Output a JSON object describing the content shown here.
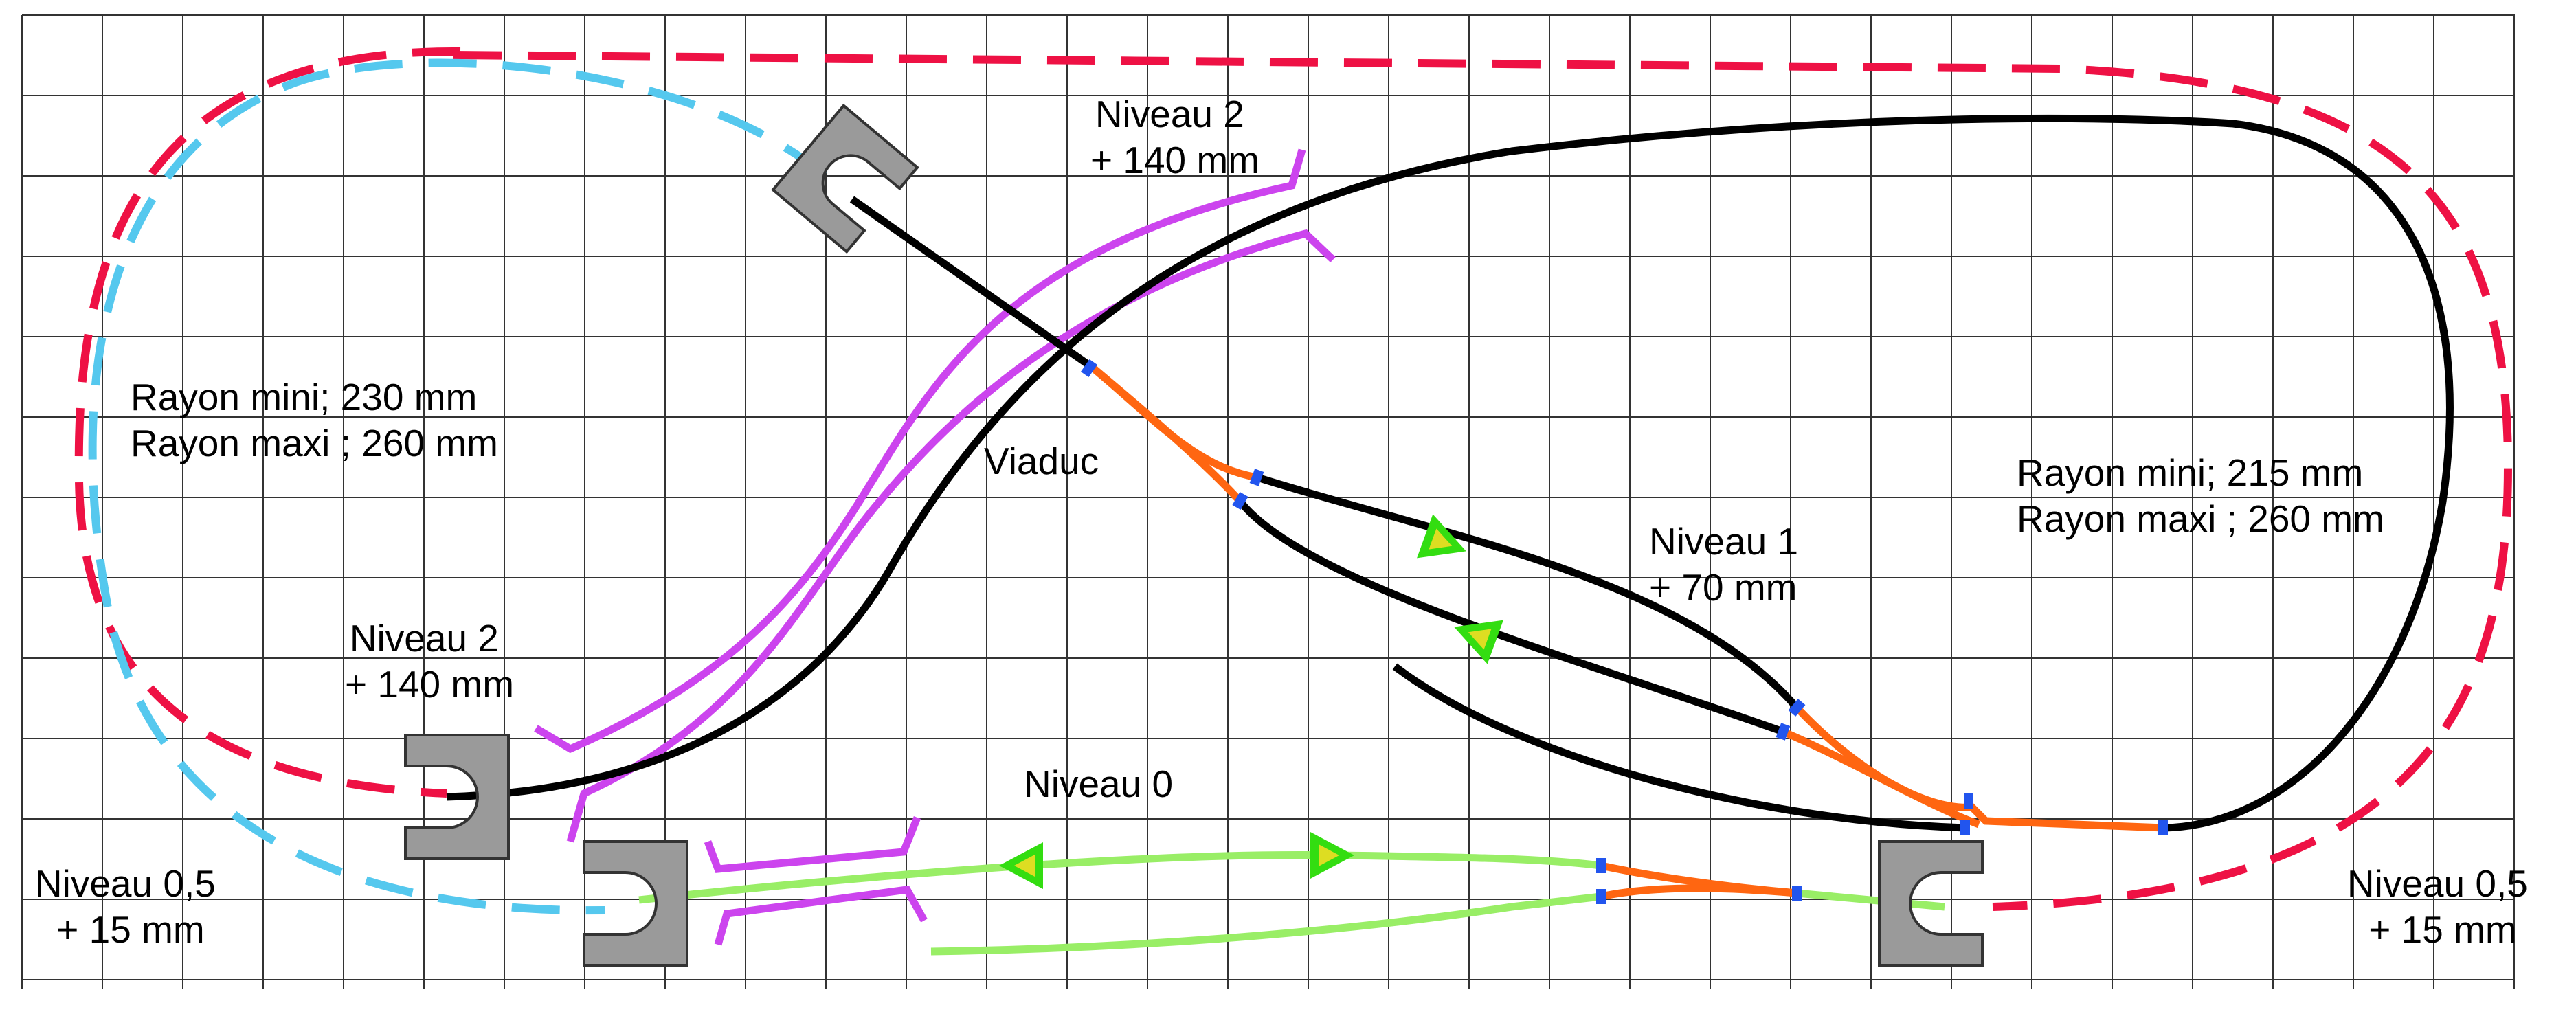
{
  "labels": {
    "niveau2_top": [
      "Niveau 2",
      "+ 140 mm"
    ],
    "niveau2_left": [
      "Niveau 2",
      "+ 140 mm"
    ],
    "rayon_left": [
      "Rayon mini; 230 mm",
      "Rayon maxi ; 260 mm"
    ],
    "rayon_right": [
      "Rayon mini; 215 mm",
      "Rayon maxi ; 260 mm"
    ],
    "viaduc": "Viaduc",
    "niveau1": [
      "Niveau 1",
      "+ 70 mm"
    ],
    "niveau0": "Niveau 0",
    "niveau05_left": [
      "Niveau 0,5",
      "+ 15 mm"
    ],
    "niveau05_right": [
      "Niveau 0,5",
      "+ 15 mm"
    ]
  },
  "colors": {
    "grid": "#333333",
    "red_dashed": "#ee1144",
    "blue_dashed": "#55c8ee",
    "track_black": "#000000",
    "viaduc_magenta": "#cc44ee",
    "turnout_orange": "#ff6611",
    "track_green": "#99ee66",
    "joint_blue": "#2255ee",
    "arrow_green": "#33dd11",
    "arrow_yellow": "#dddd22",
    "tunnel_gray": "#9a9a9a"
  },
  "icons": {
    "direction_arrow": "triangle-arrow-icon",
    "tunnel_portal": "tunnel-portal-icon"
  }
}
